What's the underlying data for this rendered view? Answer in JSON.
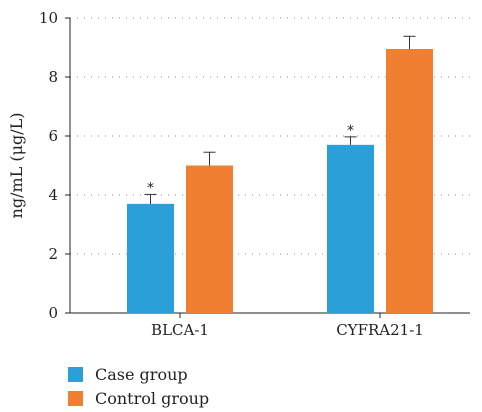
{
  "chart_data": {
    "type": "bar",
    "categories": [
      "BLCA-1",
      "CYFRA21-1"
    ],
    "series": [
      {
        "name": "Case group",
        "color": "#2a9fd8",
        "values": [
          3.7,
          5.7
        ],
        "errors": [
          0.32,
          0.27
        ],
        "significant": [
          true,
          true
        ]
      },
      {
        "name": "Control group",
        "color": "#f07f32",
        "values": [
          5.0,
          8.95
        ],
        "errors": [
          0.45,
          0.43
        ],
        "significant": [
          false,
          false
        ]
      }
    ],
    "title": "",
    "xlabel": "",
    "ylabel": "ng/mL (μg/L)",
    "ylim": [
      0,
      10
    ],
    "yticks": [
      0,
      2,
      4,
      6,
      8,
      10
    ],
    "grid": "horizontal-dotted",
    "legend_position": "bottom-left",
    "significance_marker": "*"
  }
}
